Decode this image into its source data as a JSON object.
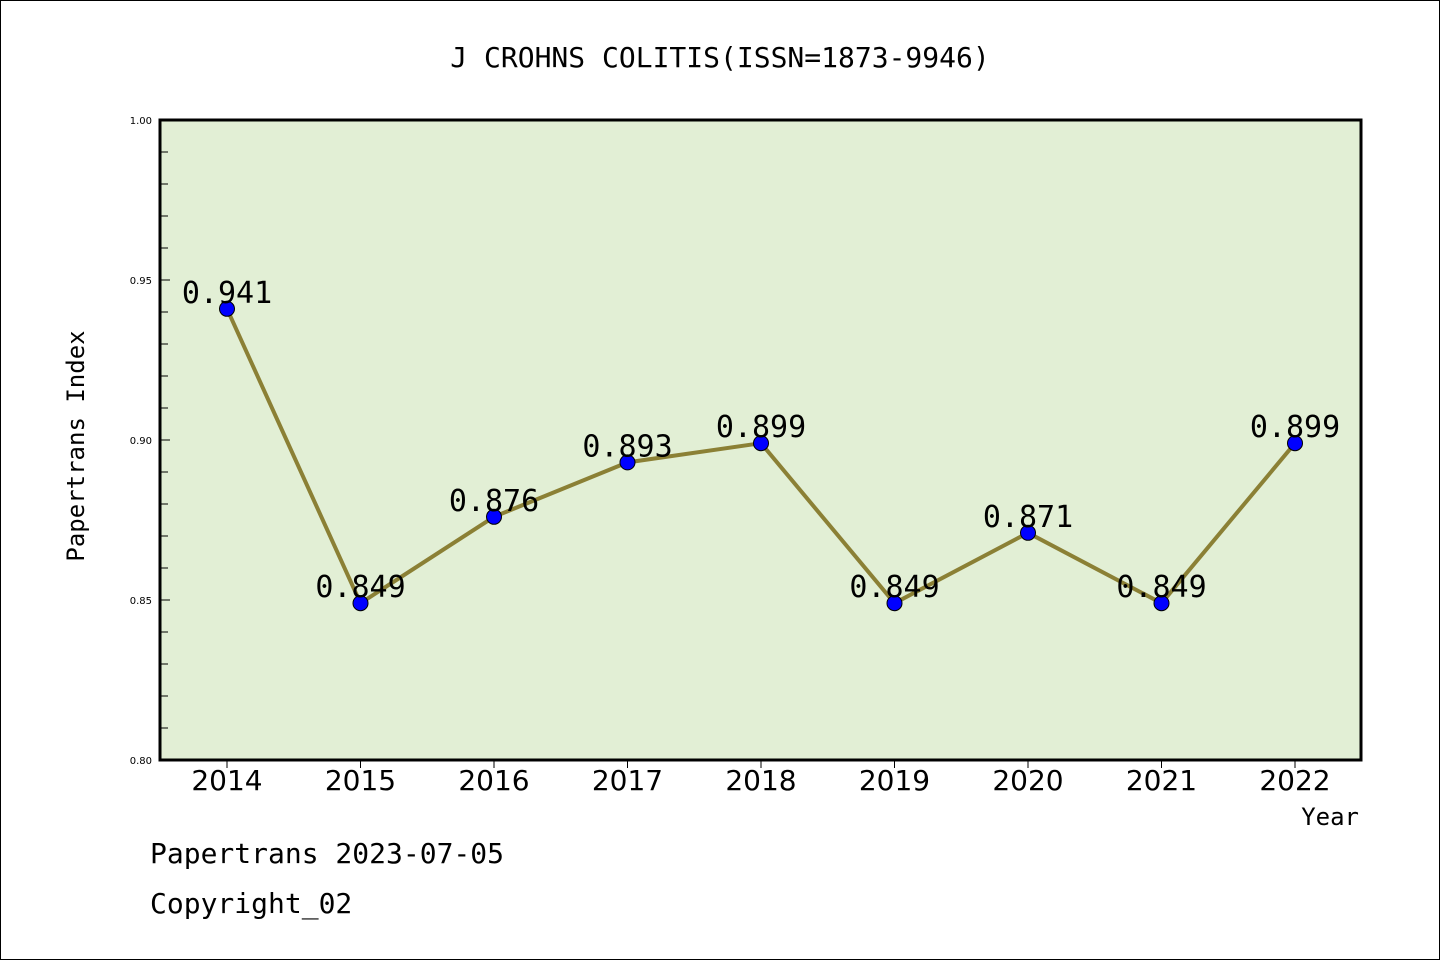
{
  "chart_data": {
    "type": "line",
    "title": "J CROHNS COLITIS(ISSN=1873-9946)",
    "xlabel": "Year",
    "ylabel": "Papertrans Index",
    "categories": [
      "2014",
      "2015",
      "2016",
      "2017",
      "2018",
      "2019",
      "2020",
      "2021",
      "2022"
    ],
    "series": [
      {
        "values": [
          0.941,
          0.849,
          0.876,
          0.893,
          0.899,
          0.849,
          0.871,
          0.849,
          0.899
        ],
        "labels": [
          "0.941",
          "0.849",
          "0.876",
          "0.893",
          "0.899",
          "0.849",
          "0.871",
          "0.849",
          "0.899"
        ]
      }
    ],
    "ylim": [
      0.8,
      1.0
    ],
    "yticks": [
      "0.80",
      "0.85",
      "0.90",
      "0.95",
      "1.00"
    ],
    "grid": false,
    "colors": {
      "plot_background": "#e2efd5",
      "line": "#8b8035",
      "marker": "#0000ff"
    }
  },
  "footer": {
    "line1": "Papertrans 2023-07-05",
    "line2": "Copyright_02"
  }
}
